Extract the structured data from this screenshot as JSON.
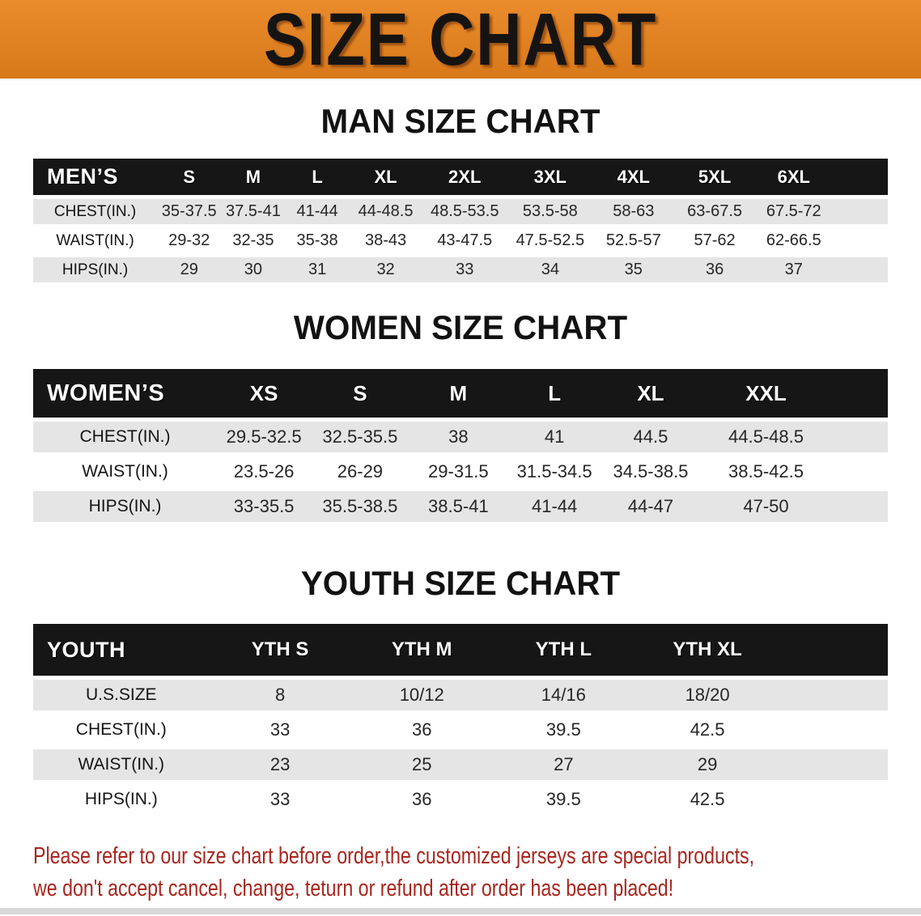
{
  "banner": {
    "title": "SIZE CHART"
  },
  "colors": {
    "banner_orange": "#E8821C",
    "header_black": "#161616",
    "row_gray": "#E5E5E5",
    "footer_red": "#A8261E"
  },
  "sections": {
    "men": {
      "heading": "MAN SIZE CHART",
      "table": {
        "header_label": "MEN’S",
        "columns": [
          "S",
          "M",
          "L",
          "XL",
          "2XL",
          "3XL",
          "4XL",
          "5XL",
          "6XL"
        ],
        "rows": [
          {
            "label": "CHEST(IN.)",
            "values": [
              "35-37.5",
              "37.5-41",
              "41-44",
              "44-48.5",
              "48.5-53.5",
              "53.5-58",
              "58-63",
              "63-67.5",
              "67.5-72"
            ]
          },
          {
            "label": "WAIST(IN.)",
            "values": [
              "29-32",
              "32-35",
              "35-38",
              "38-43",
              "43-47.5",
              "47.5-52.5",
              "52.5-57",
              "57-62",
              "62-66.5"
            ]
          },
          {
            "label": "HIPS(IN.)",
            "values": [
              "29",
              "30",
              "31",
              "32",
              "33",
              "34",
              "35",
              "36",
              "37"
            ]
          }
        ]
      }
    },
    "women": {
      "heading": "WOMEN SIZE CHART",
      "table": {
        "header_label": "WOMEN’S",
        "columns": [
          "XS",
          "S",
          "M",
          "L",
          "XL",
          "XXL"
        ],
        "rows": [
          {
            "label": "CHEST(IN.)",
            "values": [
              "29.5-32.5",
              "32.5-35.5",
              "38",
              "41",
              "44.5",
              "44.5-48.5"
            ]
          },
          {
            "label": "WAIST(IN.)",
            "values": [
              "23.5-26",
              "26-29",
              "29-31.5",
              "31.5-34.5",
              "34.5-38.5",
              "38.5-42.5"
            ]
          },
          {
            "label": "HIPS(IN.)",
            "values": [
              "33-35.5",
              "35.5-38.5",
              "38.5-41",
              "41-44",
              "44-47",
              "47-50"
            ]
          }
        ]
      }
    },
    "youth": {
      "heading": "YOUTH SIZE CHART",
      "table": {
        "header_label": "YOUTH",
        "columns": [
          "YTH S",
          "YTH M",
          "YTH L",
          "YTH XL"
        ],
        "rows": [
          {
            "label": "U.S.SIZE",
            "values": [
              "8",
              "10/12",
              "14/16",
              "18/20"
            ]
          },
          {
            "label": "CHEST(IN.)",
            "values": [
              "33",
              "36",
              "39.5",
              "42.5"
            ]
          },
          {
            "label": "WAIST(IN.)",
            "values": [
              "23",
              "25",
              "27",
              "29"
            ]
          },
          {
            "label": "HIPS(IN.)",
            "values": [
              "33",
              "36",
              "39.5",
              "42.5"
            ]
          }
        ]
      }
    }
  },
  "footer": {
    "line1": "Please refer to our size chart before order,the customized jerseys are special products,",
    "line2": "we don't accept cancel, change, teturn or refund after order has been placed!"
  }
}
